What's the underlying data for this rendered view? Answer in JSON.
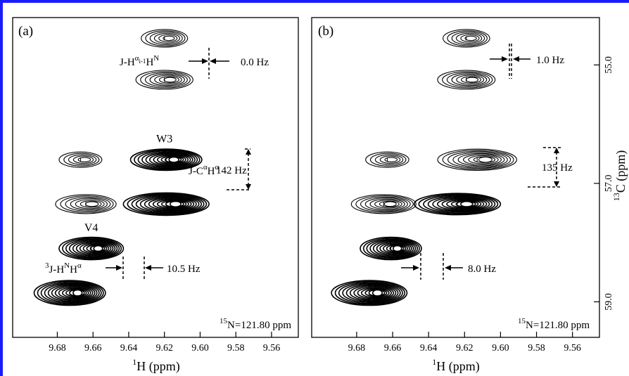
{
  "colors": {
    "border": "#1a1aff",
    "ink": "#000000"
  },
  "chart_data": [
    {
      "type": "scatter",
      "panel_label": "(a)",
      "xlabel_element": "1",
      "xlabel_rest": "H (ppm)",
      "x_ticks": [
        "9.68",
        "9.66",
        "9.64",
        "9.62",
        "9.60",
        "9.58",
        "9.56"
      ],
      "xlim": [
        9.705,
        9.545
      ],
      "ylim": [
        54.2,
        59.6
      ],
      "field_element": "15",
      "field_rest": "N=121.80 ppm",
      "peaks": [
        {
          "x": 9.62,
          "y": 54.55,
          "w": 0.013,
          "h": 0.3,
          "rings": 6,
          "filled": false
        },
        {
          "x": 9.62,
          "y": 55.25,
          "w": 0.016,
          "h": 0.32,
          "rings": 7,
          "filled": false
        },
        {
          "x": 9.667,
          "y": 56.6,
          "w": 0.012,
          "h": 0.26,
          "rings": 5,
          "filled": false
        },
        {
          "x": 9.619,
          "y": 56.6,
          "w": 0.02,
          "h": 0.36,
          "rings": 11,
          "filled": true
        },
        {
          "x": 9.664,
          "y": 57.35,
          "w": 0.017,
          "h": 0.32,
          "rings": 7,
          "filled": false
        },
        {
          "x": 9.619,
          "y": 57.35,
          "w": 0.024,
          "h": 0.38,
          "rings": 12,
          "filled": true
        },
        {
          "x": 9.661,
          "y": 58.1,
          "w": 0.018,
          "h": 0.38,
          "rings": 11,
          "filled": true
        },
        {
          "x": 9.673,
          "y": 58.85,
          "w": 0.02,
          "h": 0.42,
          "rings": 12,
          "filled": true
        }
      ],
      "labels": [
        {
          "text": "W3",
          "x": 9.62,
          "y": 56.25
        },
        {
          "text": "V4",
          "x": 9.661,
          "y": 57.75
        }
      ],
      "annotations": {
        "j_hh_prefix": "J-H",
        "j_hh_sup": "α",
        "j_hh_sub": "i-1",
        "j_hh_mid": "H",
        "j_hh_sup2": "N",
        "j_hh_value": "0.0 Hz",
        "j_ch_prefix": "J-C",
        "j_ch_sup": "α",
        "j_ch_mid": "H",
        "j_ch_sup2": "α",
        "j_ch_value": "142 Hz",
        "j_hn_presup": "3",
        "j_hn_prefix": "J-H",
        "j_hn_sup": "N",
        "j_hn_mid": "H",
        "j_hn_sup2": "α",
        "j_hn_value": "10.5 Hz"
      }
    },
    {
      "type": "scatter",
      "panel_label": "(b)",
      "xlabel_element": "1",
      "xlabel_rest": "H (ppm)",
      "ylabel_element": "13",
      "ylabel_rest": "C (ppm)",
      "x_ticks": [
        "9.68",
        "9.66",
        "9.64",
        "9.62",
        "9.60",
        "9.58",
        "9.56"
      ],
      "y_ticks": [
        "55.0",
        "57.0",
        "59.0"
      ],
      "xlim": [
        9.705,
        9.545
      ],
      "ylim": [
        54.2,
        59.6
      ],
      "field_element": "15",
      "field_rest": "N=121.80 ppm",
      "peaks": [
        {
          "x": 9.619,
          "y": 54.55,
          "w": 0.013,
          "h": 0.3,
          "rings": 6,
          "filled": false
        },
        {
          "x": 9.619,
          "y": 55.25,
          "w": 0.016,
          "h": 0.32,
          "rings": 7,
          "filled": false
        },
        {
          "x": 9.663,
          "y": 56.6,
          "w": 0.012,
          "h": 0.26,
          "rings": 5,
          "filled": false
        },
        {
          "x": 9.613,
          "y": 56.6,
          "w": 0.022,
          "h": 0.36,
          "rings": 9,
          "filled": false
        },
        {
          "x": 9.665,
          "y": 57.35,
          "w": 0.018,
          "h": 0.32,
          "rings": 8,
          "filled": false
        },
        {
          "x": 9.624,
          "y": 57.35,
          "w": 0.024,
          "h": 0.36,
          "rings": 11,
          "filled": true
        },
        {
          "x": 9.661,
          "y": 58.1,
          "w": 0.017,
          "h": 0.38,
          "rings": 11,
          "filled": true
        },
        {
          "x": 9.673,
          "y": 58.85,
          "w": 0.021,
          "h": 0.42,
          "rings": 12,
          "filled": true
        }
      ],
      "annotations": {
        "j_hh_value": "1.0 Hz",
        "j_ch_value": "135 Hz",
        "j_hn_value": "8.0 Hz"
      }
    }
  ]
}
